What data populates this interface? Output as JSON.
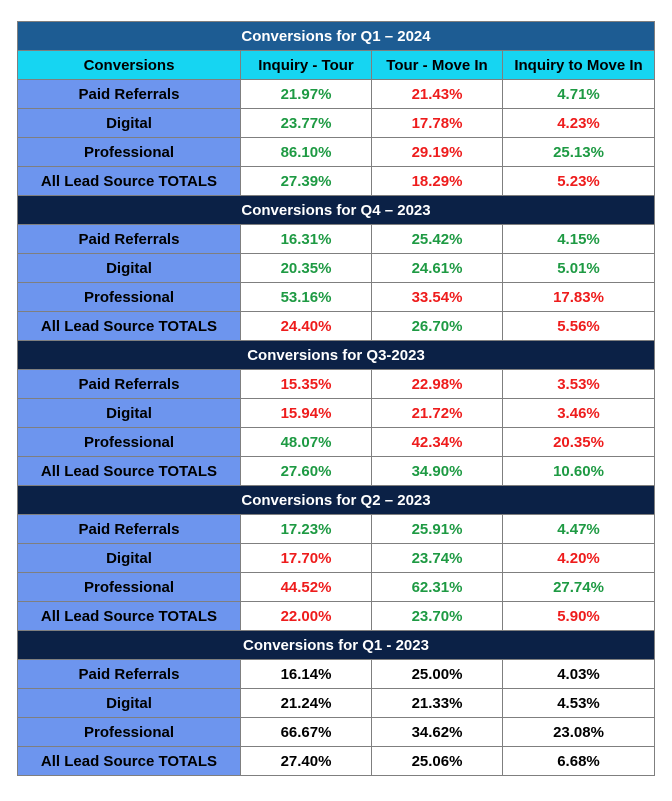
{
  "colors": {
    "green": "#1e9a43",
    "red": "#ee1c1c",
    "black": "#000000"
  },
  "columns": [
    "Conversions",
    "Inquiry - Tour",
    "Tour - Move In",
    "Inquiry to Move In"
  ],
  "sections": [
    {
      "title": "Conversions for Q1 – 2024",
      "rows": [
        {
          "label": "Paid Referrals",
          "values": [
            "21.97%",
            "21.43%",
            "4.71%"
          ],
          "colors": [
            "green",
            "red",
            "green"
          ]
        },
        {
          "label": "Digital",
          "values": [
            "23.77%",
            "17.78%",
            "4.23%"
          ],
          "colors": [
            "green",
            "red",
            "red"
          ]
        },
        {
          "label": "Professional",
          "values": [
            "86.10%",
            "29.19%",
            "25.13%"
          ],
          "colors": [
            "green",
            "red",
            "green"
          ]
        },
        {
          "label": "All Lead Source TOTALS",
          "values": [
            "27.39%",
            "18.29%",
            "5.23%"
          ],
          "colors": [
            "green",
            "red",
            "red"
          ]
        }
      ]
    },
    {
      "title": "Conversions for Q4 – 2023",
      "rows": [
        {
          "label": "Paid Referrals",
          "values": [
            "16.31%",
            "25.42%",
            "4.15%"
          ],
          "colors": [
            "green",
            "green",
            "green"
          ]
        },
        {
          "label": "Digital",
          "values": [
            "20.35%",
            "24.61%",
            "5.01%"
          ],
          "colors": [
            "green",
            "green",
            "green"
          ]
        },
        {
          "label": "Professional",
          "values": [
            "53.16%",
            "33.54%",
            "17.83%"
          ],
          "colors": [
            "green",
            "red",
            "red"
          ]
        },
        {
          "label": "All Lead Source TOTALS",
          "values": [
            "24.40%",
            "26.70%",
            "5.56%"
          ],
          "colors": [
            "red",
            "green",
            "red"
          ]
        }
      ]
    },
    {
      "title": "Conversions for Q3-2023",
      "rows": [
        {
          "label": "Paid Referrals",
          "values": [
            "15.35%",
            "22.98%",
            "3.53%"
          ],
          "colors": [
            "red",
            "red",
            "red"
          ]
        },
        {
          "label": "Digital",
          "values": [
            "15.94%",
            "21.72%",
            "3.46%"
          ],
          "colors": [
            "red",
            "red",
            "red"
          ]
        },
        {
          "label": "Professional",
          "values": [
            "48.07%",
            "42.34%",
            "20.35%"
          ],
          "colors": [
            "green",
            "red",
            "red"
          ]
        },
        {
          "label": "All Lead Source TOTALS",
          "values": [
            "27.60%",
            "34.90%",
            "10.60%"
          ],
          "colors": [
            "green",
            "green",
            "green"
          ]
        }
      ]
    },
    {
      "title": "Conversions for Q2 – 2023",
      "rows": [
        {
          "label": "Paid Referrals",
          "values": [
            "17.23%",
            "25.91%",
            "4.47%"
          ],
          "colors": [
            "green",
            "green",
            "green"
          ]
        },
        {
          "label": "Digital",
          "values": [
            "17.70%",
            "23.74%",
            "4.20%"
          ],
          "colors": [
            "red",
            "green",
            "red"
          ]
        },
        {
          "label": "Professional",
          "values": [
            "44.52%",
            "62.31%",
            "27.74%"
          ],
          "colors": [
            "red",
            "green",
            "green"
          ]
        },
        {
          "label": "All Lead Source TOTALS",
          "values": [
            "22.00%",
            "23.70%",
            "5.90%"
          ],
          "colors": [
            "red",
            "green",
            "red"
          ]
        }
      ]
    },
    {
      "title": "Conversions for Q1 - 2023",
      "rows": [
        {
          "label": "Paid Referrals",
          "values": [
            "16.14%",
            "25.00%",
            "4.03%"
          ],
          "colors": [
            "black",
            "black",
            "black"
          ]
        },
        {
          "label": "Digital",
          "values": [
            "21.24%",
            "21.33%",
            "4.53%"
          ],
          "colors": [
            "black",
            "black",
            "black"
          ]
        },
        {
          "label": "Professional",
          "values": [
            "66.67%",
            "34.62%",
            "23.08%"
          ],
          "colors": [
            "black",
            "black",
            "black"
          ]
        },
        {
          "label": "All Lead Source TOTALS",
          "values": [
            "27.40%",
            "25.06%",
            "6.68%"
          ],
          "colors": [
            "black",
            "black",
            "black"
          ]
        }
      ]
    }
  ]
}
